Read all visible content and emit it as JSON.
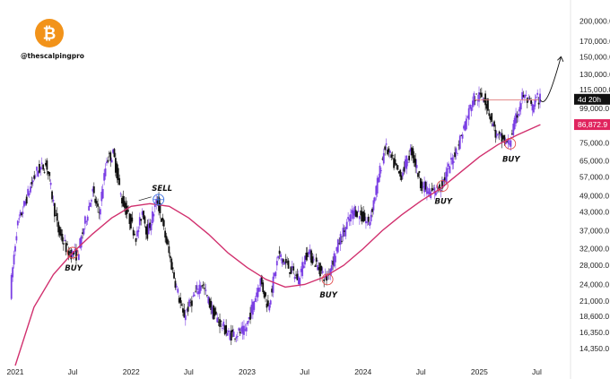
{
  "brand": {
    "handle": "@thescalpingpro",
    "logo_glyph": "₿",
    "logo_color": "#f2931a",
    "logo_icon": "bitcoin-logo-icon"
  },
  "price_badges": [
    {
      "label": "4d 20h",
      "color": "#111111",
      "value": 106500
    },
    {
      "label": "86,872.9",
      "color": "#e0245e",
      "value": 86872.9
    }
  ],
  "chart_data": {
    "type": "candlestick",
    "title": "",
    "xlabel": "",
    "ylabel": "",
    "y_scale": "log",
    "ylim": [
      12500,
      230000
    ],
    "xlim": [
      "2020-12-01",
      "2025-10-15"
    ],
    "y_ticks": [
      {
        "value": 200000,
        "label": "200,000.0"
      },
      {
        "value": 170000,
        "label": "170,000.0"
      },
      {
        "value": 150000,
        "label": "150,000.0"
      },
      {
        "value": 130000,
        "label": "130,000.0"
      },
      {
        "value": 115000,
        "label": "115,000.0"
      },
      {
        "value": 99000,
        "label": "99,000.0"
      },
      {
        "value": 75000,
        "label": "75,000.0"
      },
      {
        "value": 65000,
        "label": "65,000.0"
      },
      {
        "value": 57000,
        "label": "57,000.0"
      },
      {
        "value": 49000,
        "label": "49,000.0"
      },
      {
        "value": 43000,
        "label": "43,000.0"
      },
      {
        "value": 37000,
        "label": "37,000.0"
      },
      {
        "value": 32000,
        "label": "32,000.0"
      },
      {
        "value": 28000,
        "label": "28,000.0"
      },
      {
        "value": 24000,
        "label": "24,000.0"
      },
      {
        "value": 21000,
        "label": "21,000.0"
      },
      {
        "value": 18600,
        "label": "18,600.0"
      },
      {
        "value": 16350,
        "label": "16,350.0"
      },
      {
        "value": 14350,
        "label": "14,350.0"
      }
    ],
    "x_ticks": [
      {
        "date": "2021-01-01",
        "label": "2021"
      },
      {
        "date": "2021-07-01",
        "label": "Jul"
      },
      {
        "date": "2022-01-01",
        "label": "2022"
      },
      {
        "date": "2022-07-01",
        "label": "Jul"
      },
      {
        "date": "2023-01-01",
        "label": "2023"
      },
      {
        "date": "2023-07-01",
        "label": "Jul"
      },
      {
        "date": "2024-01-01",
        "label": "2024"
      },
      {
        "date": "2024-07-01",
        "label": "Jul"
      },
      {
        "date": "2025-01-01",
        "label": "2025"
      },
      {
        "date": "2025-07-01",
        "label": "Jul"
      }
    ],
    "bull_color": "#7b3fe4",
    "bear_color": "#111111",
    "price_path": [
      [
        "2020-12-01",
        14000
      ],
      [
        "2021-01-10",
        38000
      ],
      [
        "2021-02-20",
        52000
      ],
      [
        "2021-03-15",
        60000
      ],
      [
        "2021-04-14",
        63000
      ],
      [
        "2021-05-20",
        37000
      ],
      [
        "2021-06-22",
        31000
      ],
      [
        "2021-07-20",
        30500
      ],
      [
        "2021-09-05",
        51000
      ],
      [
        "2021-09-25",
        42000
      ],
      [
        "2021-10-20",
        66000
      ],
      [
        "2021-11-10",
        68500
      ],
      [
        "2021-12-05",
        48000
      ],
      [
        "2022-01-22",
        35000
      ],
      [
        "2022-02-10",
        44000
      ],
      [
        "2022-02-24",
        36000
      ],
      [
        "2022-03-28",
        47500
      ],
      [
        "2022-05-12",
        28000
      ],
      [
        "2022-06-18",
        18500
      ],
      [
        "2022-08-14",
        24500
      ],
      [
        "2022-09-20",
        19000
      ],
      [
        "2022-11-09",
        16000
      ],
      [
        "2022-12-30",
        16500
      ],
      [
        "2023-02-15",
        25000
      ],
      [
        "2023-03-12",
        20000
      ],
      [
        "2023-04-14",
        30500
      ],
      [
        "2023-06-15",
        25000
      ],
      [
        "2023-07-13",
        31500
      ],
      [
        "2023-09-11",
        25000
      ],
      [
        "2023-10-24",
        34500
      ],
      [
        "2023-12-08",
        44000
      ],
      [
        "2024-01-23",
        39000
      ],
      [
        "2024-03-14",
        73000
      ],
      [
        "2024-05-01",
        57000
      ],
      [
        "2024-06-05",
        71000
      ],
      [
        "2024-07-05",
        54000
      ],
      [
        "2024-08-05",
        50000
      ],
      [
        "2024-09-07",
        53000
      ],
      [
        "2024-10-29",
        73000
      ],
      [
        "2024-12-17",
        108000
      ],
      [
        "2025-01-20",
        109000
      ],
      [
        "2025-02-28",
        79000
      ],
      [
        "2025-04-08",
        74500
      ],
      [
        "2025-05-22",
        111000
      ],
      [
        "2025-06-22",
        99000
      ],
      [
        "2025-07-05",
        108000
      ],
      [
        "2025-07-12",
        106500
      ]
    ],
    "moving_average": {
      "color": "#d1306e",
      "points": [
        [
          "2021-01-01",
          12500
        ],
        [
          "2021-03-01",
          20000
        ],
        [
          "2021-05-01",
          26000
        ],
        [
          "2021-07-01",
          31000
        ],
        [
          "2021-09-01",
          36000
        ],
        [
          "2021-11-01",
          41000
        ],
        [
          "2022-01-01",
          45000
        ],
        [
          "2022-03-01",
          46000
        ],
        [
          "2022-05-01",
          45000
        ],
        [
          "2022-07-01",
          41000
        ],
        [
          "2022-09-01",
          36000
        ],
        [
          "2022-11-01",
          31000
        ],
        [
          "2023-01-01",
          27500
        ],
        [
          "2023-03-01",
          25000
        ],
        [
          "2023-05-01",
          23500
        ],
        [
          "2023-07-01",
          24000
        ],
        [
          "2023-09-01",
          25500
        ],
        [
          "2023-11-01",
          28000
        ],
        [
          "2024-01-01",
          32000
        ],
        [
          "2024-03-01",
          37000
        ],
        [
          "2024-05-01",
          42000
        ],
        [
          "2024-07-01",
          47000
        ],
        [
          "2024-09-01",
          52000
        ],
        [
          "2024-11-01",
          59000
        ],
        [
          "2025-01-01",
          67000
        ],
        [
          "2025-03-01",
          74000
        ],
        [
          "2025-05-01",
          80000
        ],
        [
          "2025-07-12",
          86872.9
        ]
      ]
    },
    "resistance_line": {
      "from": "2024-12-17",
      "to": "2025-07-05",
      "value": 106000,
      "color": "#e07b7b"
    },
    "projection_arrow": {
      "points": [
        [
          "2025-07-12",
          106000
        ],
        [
          "2025-07-28",
          99000
        ],
        [
          "2025-08-20",
          118000
        ],
        [
          "2025-09-15",
          150000
        ]
      ]
    },
    "annotations": [
      {
        "text": "BUY",
        "date": "2021-07-01",
        "value": 31000,
        "type": "buy"
      },
      {
        "text": "SELL",
        "date": "2022-03-28",
        "value": 47500,
        "type": "sell"
      },
      {
        "text": "BUY",
        "date": "2023-09-11",
        "value": 25000,
        "type": "buy"
      },
      {
        "text": "BUY",
        "date": "2024-09-07",
        "value": 53000,
        "type": "buy"
      },
      {
        "text": "BUY",
        "date": "2025-04-08",
        "value": 74500,
        "type": "buy"
      }
    ]
  }
}
